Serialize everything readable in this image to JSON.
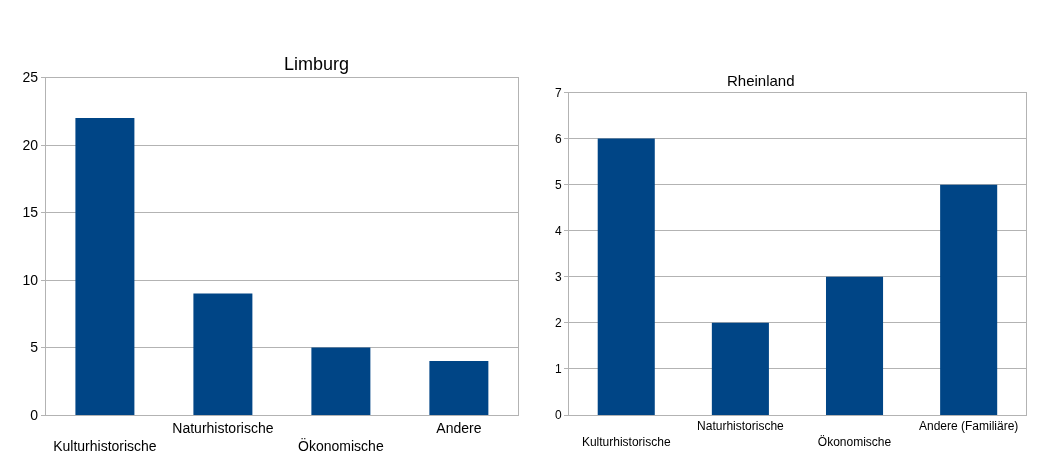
{
  "chart_data": [
    {
      "type": "bar",
      "title": "Limburg",
      "categories": [
        "Kulturhistorische",
        "Naturhistorische",
        "Ökonomische",
        "Andere"
      ],
      "values": [
        22,
        9,
        5,
        4
      ],
      "color": "#004586",
      "ylim": [
        0,
        25
      ],
      "yticks": [
        0,
        5,
        10,
        15,
        20,
        25
      ],
      "grid": "y"
    },
    {
      "type": "bar",
      "title": "Rheinland",
      "categories": [
        "Kulturhistorische",
        "Naturhistorische",
        "Ökonomische",
        "Andere (Familiäre)"
      ],
      "values": [
        6,
        2,
        3,
        5
      ],
      "color": "#004586",
      "ylim": [
        0,
        7
      ],
      "yticks": [
        0,
        1,
        2,
        3,
        4,
        5,
        6,
        7
      ],
      "grid": "y"
    }
  ]
}
